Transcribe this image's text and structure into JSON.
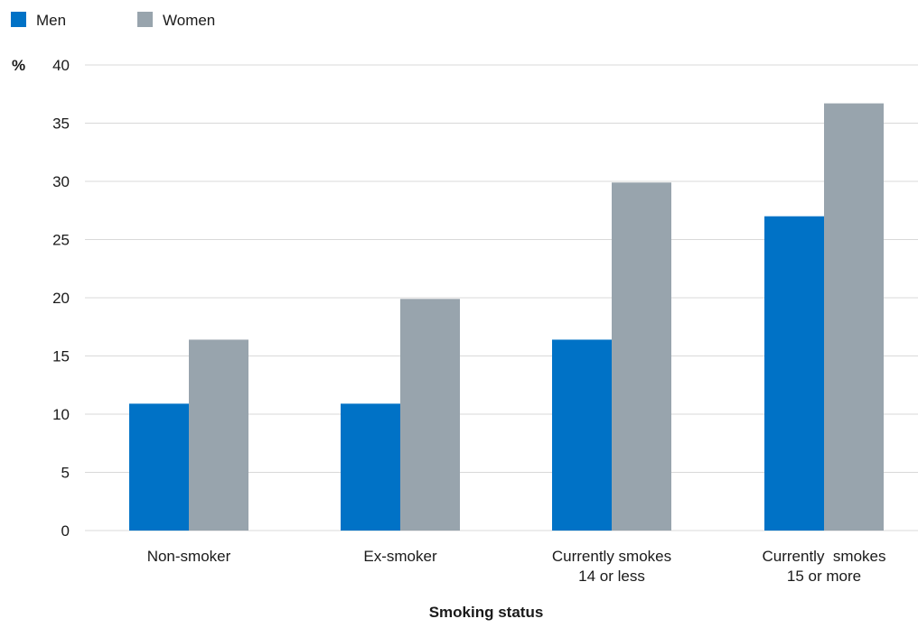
{
  "chart_data": {
    "type": "bar",
    "categories": [
      [
        "Non-smoker"
      ],
      [
        "Ex-smoker"
      ],
      [
        "Currently smokes",
        "14 or less"
      ],
      [
        "Currently  smokes",
        "15 or more"
      ]
    ],
    "series": [
      {
        "name": "Men",
        "color": "#0072c6",
        "values": [
          10.9,
          10.9,
          16.4,
          27.0
        ]
      },
      {
        "name": "Women",
        "color": "#98a4ad",
        "values": [
          16.4,
          19.9,
          29.9,
          36.7
        ]
      }
    ],
    "xlabel": "Smoking status",
    "ylabel": "%",
    "ylim": [
      0,
      40
    ],
    "yticks": [
      0,
      5,
      10,
      15,
      20,
      25,
      30,
      35,
      40
    ],
    "grid": true,
    "legend_position": "top-left"
  }
}
